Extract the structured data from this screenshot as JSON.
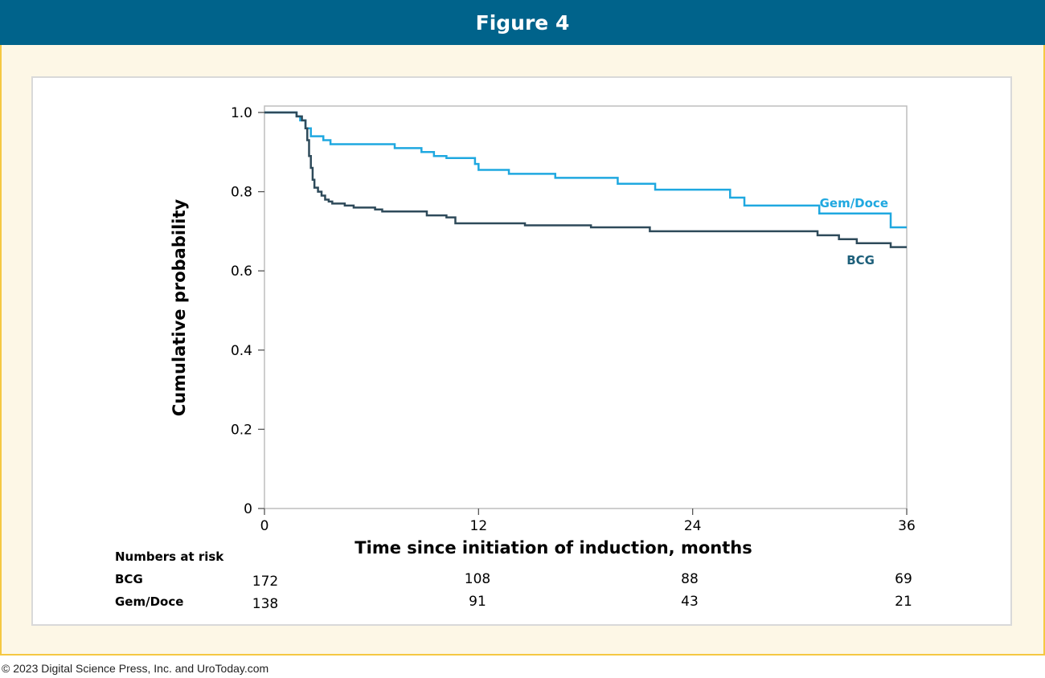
{
  "header": {
    "title": "Figure 4"
  },
  "footer": {
    "copyright": "© 2023 Digital Science Press, Inc. and UroToday.com"
  },
  "chart_data": {
    "type": "line",
    "step": true,
    "xlabel": "Time since initiation of induction, months",
    "ylabel": "Cumulative probability",
    "xlim": [
      0,
      36
    ],
    "ylim": [
      0,
      1.0
    ],
    "x_ticks": [
      0,
      12,
      24,
      36
    ],
    "x_tick_labels": [
      "0",
      "12",
      "24",
      "36"
    ],
    "y_ticks": [
      0,
      0.2,
      0.4,
      0.6,
      0.8,
      1.0
    ],
    "y_tick_labels": [
      "0",
      "0.2",
      "0.4",
      "0.6",
      "0.8",
      "1.0"
    ],
    "grid": false,
    "series": [
      {
        "name": "Gem/Doce",
        "color": "#1fa8e0",
        "points": [
          [
            0,
            1.0
          ],
          [
            1.6,
            1.0
          ],
          [
            1.8,
            0.99
          ],
          [
            2.0,
            0.98
          ],
          [
            2.3,
            0.96
          ],
          [
            2.6,
            0.94
          ],
          [
            3.3,
            0.93
          ],
          [
            3.7,
            0.92
          ],
          [
            7.3,
            0.91
          ],
          [
            8.8,
            0.9
          ],
          [
            9.5,
            0.89
          ],
          [
            10.2,
            0.885
          ],
          [
            11.8,
            0.87
          ],
          [
            12.0,
            0.855
          ],
          [
            13.7,
            0.845
          ],
          [
            16.3,
            0.835
          ],
          [
            19.8,
            0.82
          ],
          [
            21.9,
            0.805
          ],
          [
            26.1,
            0.785
          ],
          [
            26.9,
            0.765
          ],
          [
            31.1,
            0.745
          ],
          [
            35.1,
            0.71
          ],
          [
            36.0,
            0.71
          ]
        ]
      },
      {
        "name": "BCG",
        "color": "#2e4a5a",
        "points": [
          [
            0,
            1.0
          ],
          [
            1.6,
            1.0
          ],
          [
            1.8,
            0.99
          ],
          [
            2.1,
            0.98
          ],
          [
            2.3,
            0.96
          ],
          [
            2.4,
            0.93
          ],
          [
            2.5,
            0.89
          ],
          [
            2.6,
            0.86
          ],
          [
            2.7,
            0.83
          ],
          [
            2.8,
            0.81
          ],
          [
            3.0,
            0.8
          ],
          [
            3.2,
            0.79
          ],
          [
            3.4,
            0.78
          ],
          [
            3.6,
            0.775
          ],
          [
            3.8,
            0.77
          ],
          [
            4.5,
            0.765
          ],
          [
            5.0,
            0.76
          ],
          [
            6.2,
            0.755
          ],
          [
            6.6,
            0.75
          ],
          [
            9.1,
            0.74
          ],
          [
            10.2,
            0.735
          ],
          [
            10.7,
            0.72
          ],
          [
            14.6,
            0.715
          ],
          [
            18.3,
            0.71
          ],
          [
            21.6,
            0.7
          ],
          [
            31.0,
            0.69
          ],
          [
            32.2,
            0.68
          ],
          [
            33.2,
            0.67
          ],
          [
            35.1,
            0.66
          ],
          [
            36.0,
            0.66
          ]
        ]
      }
    ],
    "risk_table": {
      "title": "Numbers at risk",
      "times": [
        0,
        12,
        24,
        36
      ],
      "rows": [
        {
          "name": "BCG",
          "counts": [
            "172",
            "108",
            "88",
            "69"
          ]
        },
        {
          "name": "Gem/Doce",
          "counts": [
            "138",
            "91",
            "43",
            "21"
          ]
        }
      ]
    }
  }
}
